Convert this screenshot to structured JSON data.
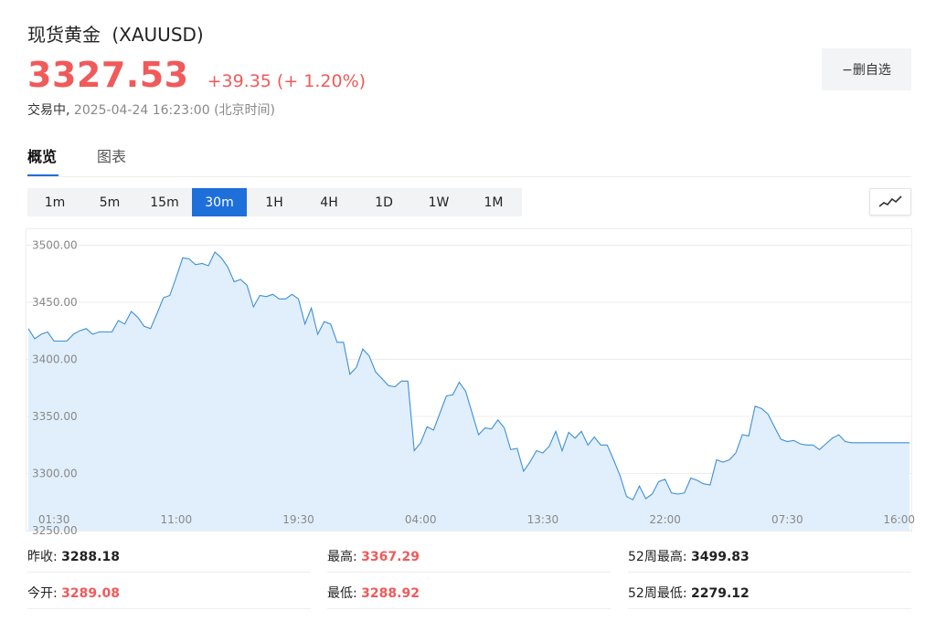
{
  "header": {
    "title": "现货黄金",
    "symbol": "(XAUUSD)",
    "price": "3327.53",
    "change": "+39.35 (+ 1.20%)",
    "status": "交易中,",
    "datetime": "2025-04-24 16:23:00",
    "timezone": "(北京时间)",
    "fav_label": "−删自选"
  },
  "tabs": [
    {
      "label": "概览",
      "active": true
    },
    {
      "label": "图表",
      "active": false
    }
  ],
  "periods": [
    {
      "label": "1m",
      "active": false
    },
    {
      "label": "5m",
      "active": false
    },
    {
      "label": "15m",
      "active": false
    },
    {
      "label": "30m",
      "active": true
    },
    {
      "label": "1H",
      "active": false
    },
    {
      "label": "4H",
      "active": false
    },
    {
      "label": "1D",
      "active": false
    },
    {
      "label": "1W",
      "active": false
    },
    {
      "label": "1M",
      "active": false
    }
  ],
  "chart_type_icon": "line-chart-icon",
  "colors": {
    "up": "#f05a5a",
    "accent": "#1e6fd9",
    "line": "#3d8fd6",
    "fill": "#e1effc"
  },
  "chart_data": {
    "type": "area",
    "title": "",
    "xlabel": "",
    "ylabel": "",
    "ylim": [
      3250,
      3510
    ],
    "y_ticks": [
      3250,
      3300,
      3350,
      3400,
      3450,
      3500
    ],
    "y_tick_labels": [
      "3250.00",
      "3300.00",
      "3350.00",
      "3400.00",
      "3450.00",
      "3500.00"
    ],
    "x_ticks": [
      {
        "label": "01:30",
        "i": 4
      },
      {
        "label": "11:00",
        "i": 23
      },
      {
        "label": "19:30",
        "i": 42
      },
      {
        "label": "04:00",
        "i": 61
      },
      {
        "label": "13:30",
        "i": 80
      },
      {
        "label": "22:00",
        "i": 99
      },
      {
        "label": "07:30",
        "i": 118
      },
      {
        "label": "16:00",
        "i": 137
      }
    ],
    "n_points": 138,
    "series": [
      {
        "values": [
          3427,
          3418,
          3422,
          3424,
          3416,
          3416,
          3416,
          3422,
          3425,
          3427,
          3422,
          3424,
          3424,
          3424,
          3434,
          3431,
          3442,
          3437,
          3429,
          3427,
          3440,
          3454,
          3456,
          3472,
          3489,
          3488,
          3483,
          3484,
          3482,
          3494,
          3489,
          3481,
          3468,
          3470,
          3465,
          3446,
          3456,
          3455,
          3457,
          3453,
          3453,
          3457,
          3453,
          3431,
          3445,
          3422,
          3433,
          3431,
          3415,
          3415,
          3387,
          3393,
          3409,
          3403,
          3389,
          3383,
          3377,
          3376,
          3381,
          3381,
          3320,
          3327,
          3341,
          3338,
          3353,
          3368,
          3369,
          3380,
          3372,
          3353,
          3334,
          3340,
          3339,
          3347,
          3340,
          3321,
          3322,
          3302,
          3310,
          3320,
          3318,
          3324,
          3337,
          3320,
          3336,
          3331,
          3337,
          3325,
          3332,
          3325,
          3325,
          3312,
          3298,
          3280,
          3277,
          3289,
          3278,
          3282,
          3293,
          3295,
          3283,
          3282,
          3283,
          3296,
          3294,
          3291,
          3290,
          3312,
          3310,
          3312,
          3318,
          3334,
          3333,
          3359,
          3357,
          3352,
          3341,
          3330,
          3328,
          3329,
          3326,
          3325,
          3325,
          3321,
          3326,
          3331,
          3334,
          3328,
          3327,
          3327,
          3327,
          3327,
          3327,
          3327,
          3327,
          3327,
          3327,
          3327
        ]
      }
    ],
    "grid": true,
    "legend": "none"
  },
  "stats": {
    "prev_close_label": "昨收:",
    "prev_close": "3288.18",
    "open_label": "今开:",
    "open": "3289.08",
    "high_label": "最高:",
    "high": "3367.29",
    "low_label": "最低:",
    "low": "3288.92",
    "w52_high_label": "52周最高:",
    "w52_high": "3499.83",
    "w52_low_label": "52周最低:",
    "w52_low": "2279.12"
  }
}
